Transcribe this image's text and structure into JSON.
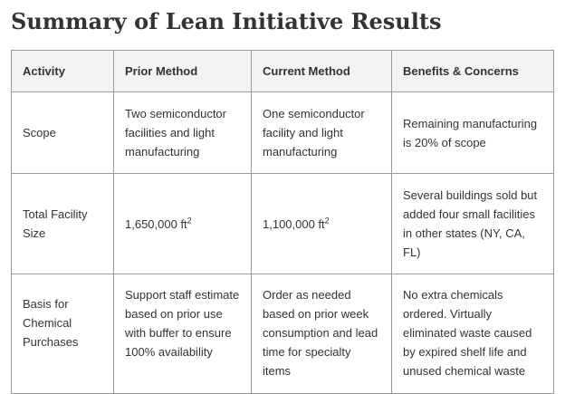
{
  "title": "Summary of Lean Initiative Results",
  "table": {
    "headers": [
      "Activity",
      "Prior Method",
      "Current Method",
      "Benefits & Concerns"
    ],
    "rows": [
      {
        "activity": "Scope",
        "prior": "Two semiconductor facilities and light manufacturing",
        "current": "One semiconductor facility and light manufacturing",
        "benefits": "Remaining manufacturing is 20% of scope"
      },
      {
        "activity": "Total Facility Size",
        "prior": "1,650,000 ft",
        "prior_sup": "2",
        "current": "1,100,000 ft",
        "current_sup": "2",
        "benefits": "Several buildings sold but added four small facilities in other states (NY, CA, FL)"
      },
      {
        "activity": "Basis for Chemical Purchases",
        "prior": "Support staff estimate based on prior use with buffer to ensure 100% availability",
        "current": "Order as needed based on prior week consumption and lead time for specialty items",
        "benefits": "No extra chemicals ordered. Virtually eliminated waste caused by expired shelf life and unused chemical waste"
      }
    ]
  }
}
